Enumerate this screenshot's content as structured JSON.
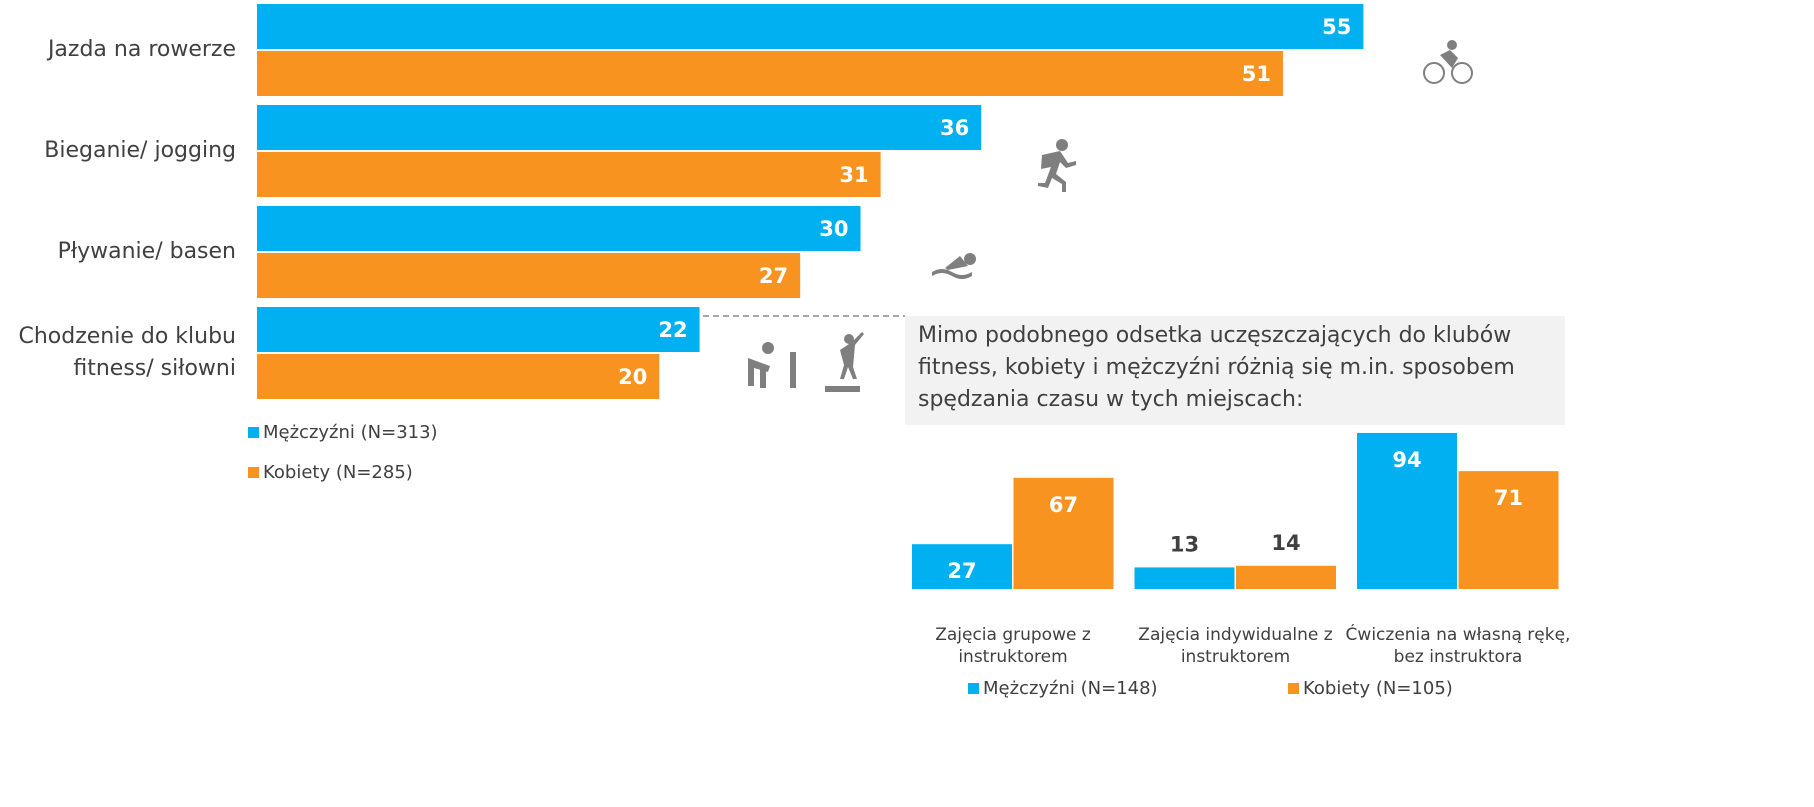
{
  "chart_data": [
    {
      "type": "hbar",
      "categories": [
        "Jazda na rowerze",
        "Bieganie/ jogging",
        "Pływanie/ basen",
        "Chodzenie do klubu fitness/ siłowni"
      ],
      "series": [
        {
          "name": "Mężczyźni (N=313)",
          "color": "#00b0f0",
          "values": [
            55,
            36,
            30,
            22
          ]
        },
        {
          "name": "Kobiety (N=285)",
          "color": "#f7931e",
          "values": [
            51,
            31,
            27,
            20
          ]
        }
      ],
      "xlim": [
        0,
        60
      ]
    },
    {
      "type": "bar",
      "annotation": "Mimo podobnego odsetka uczęszczających do klubów fitness, kobiety i mężczyźni różnią się m.in. sposobem spędzania czasu w tych miejscach:",
      "categories": [
        "Zajęcia grupowe z instruktorem",
        "Zajęcia indywidualne z instruktorem",
        "Ćwiczenia na własną rękę, bez instruktora"
      ],
      "series": [
        {
          "name": "Mężczyźni (N=148)",
          "color": "#00b0f0",
          "values": [
            27,
            13,
            94
          ]
        },
        {
          "name": "Kobiety (N=105)",
          "color": "#f7931e",
          "values": [
            67,
            14,
            71
          ]
        }
      ],
      "ylim": [
        0,
        100
      ]
    }
  ]
}
